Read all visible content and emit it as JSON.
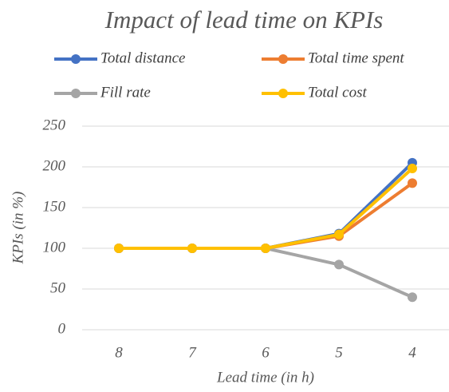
{
  "chart_data": {
    "type": "line",
    "title": "Impact of lead time on KPIs",
    "xlabel": "Lead time (in h)",
    "ylabel": "KPIs (in %)",
    "categories": [
      "8",
      "7",
      "6",
      "5",
      "4"
    ],
    "series": [
      {
        "name": "Total distance",
        "color": "#4472c4",
        "values": [
          100,
          100,
          100,
          118,
          205
        ]
      },
      {
        "name": "Total time spent",
        "color": "#ed7d31",
        "values": [
          100,
          100,
          100,
          115,
          180
        ]
      },
      {
        "name": "Fill rate",
        "color": "#a5a5a5",
        "values": [
          100,
          100,
          100,
          80,
          40
        ]
      },
      {
        "name": "Total cost",
        "color": "#ffc000",
        "values": [
          100,
          100,
          100,
          117,
          198
        ]
      }
    ],
    "ylim": [
      0,
      250
    ],
    "yticks": [
      0,
      50,
      100,
      150,
      200,
      250
    ],
    "grid": true,
    "legend": "top"
  }
}
